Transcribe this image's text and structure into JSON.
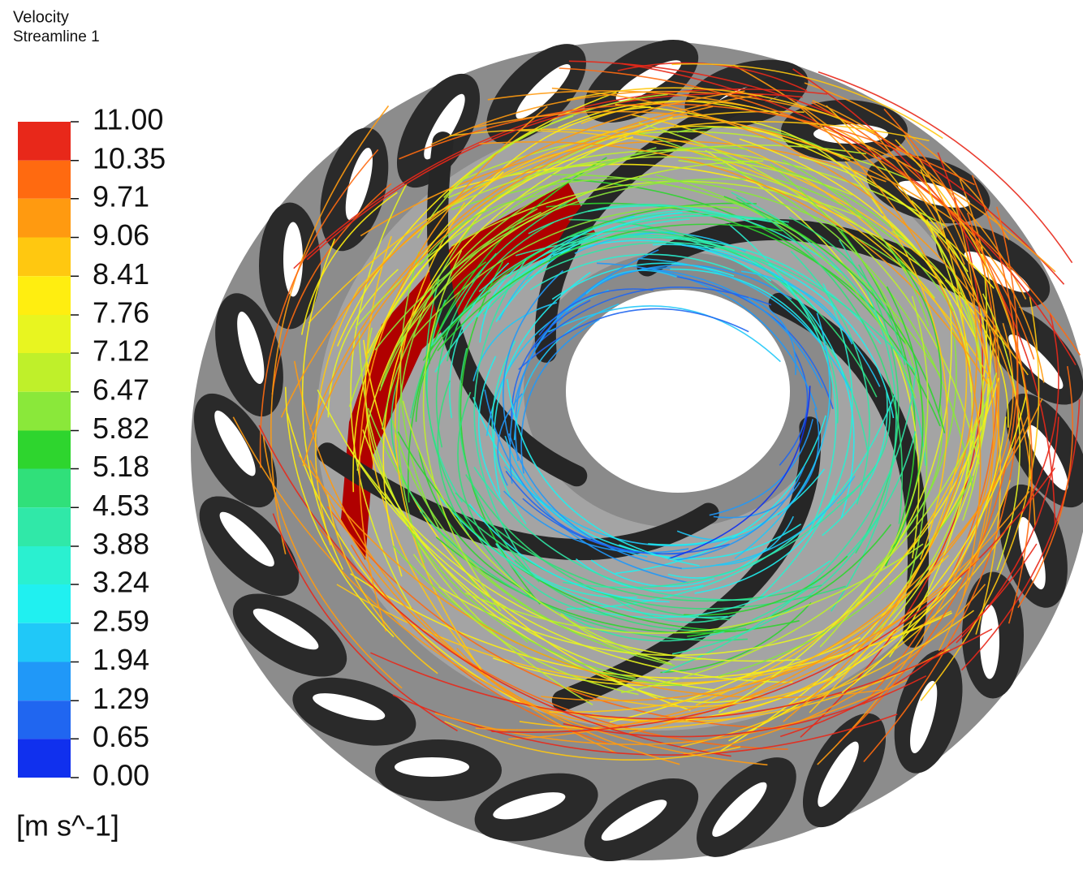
{
  "legend": {
    "title": "Velocity",
    "subtitle": "Streamline 1",
    "unit": "[m s^-1]",
    "range": [
      0,
      11
    ],
    "ticks": [
      {
        "value": 11,
        "label": "11.00"
      },
      {
        "value": 10.35,
        "label": "10.35"
      },
      {
        "value": 9.71,
        "label": "9.71"
      },
      {
        "value": 9.06,
        "label": "9.06"
      },
      {
        "value": 8.41,
        "label": "8.41"
      },
      {
        "value": 7.76,
        "label": "7.76"
      },
      {
        "value": 7.12,
        "label": "7.12"
      },
      {
        "value": 6.47,
        "label": "6.47"
      },
      {
        "value": 5.82,
        "label": "5.82"
      },
      {
        "value": 5.18,
        "label": "5.18"
      },
      {
        "value": 4.53,
        "label": "4.53"
      },
      {
        "value": 3.88,
        "label": "3.88"
      },
      {
        "value": 3.24,
        "label": "3.24"
      },
      {
        "value": 2.59,
        "label": "2.59"
      },
      {
        "value": 1.94,
        "label": "1.94"
      },
      {
        "value": 1.29,
        "label": "1.29"
      },
      {
        "value": 0.65,
        "label": "0.65"
      },
      {
        "value": 0,
        "label": "0.00"
      }
    ],
    "colors": [
      "#e8281a",
      "#ff6a10",
      "#ff9a10",
      "#ffc810",
      "#ffee10",
      "#e8f520",
      "#bff02a",
      "#8ae83a",
      "#2ed52e",
      "#30e07a",
      "#30e8a8",
      "#2af0d0",
      "#20f0f0",
      "#20c8f8",
      "#2098f8",
      "#2066f0",
      "#1030ee"
    ]
  }
}
